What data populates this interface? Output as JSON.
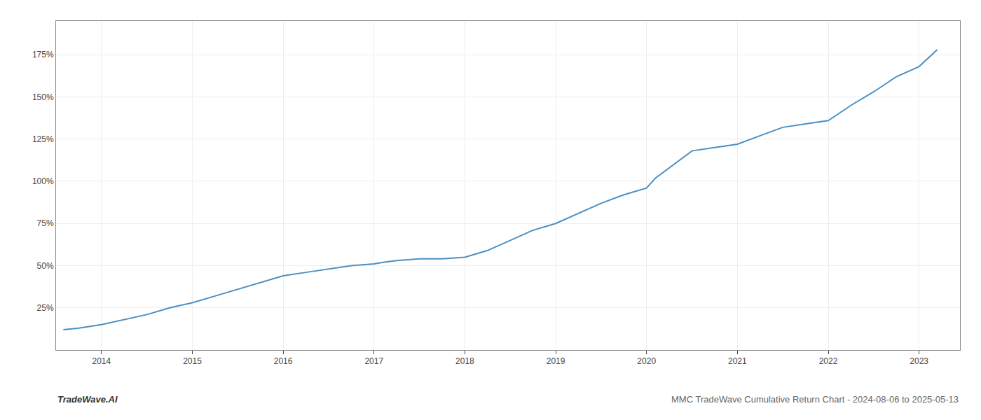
{
  "chart_data": {
    "type": "line",
    "x": [
      2013.58,
      2013.75,
      2014.0,
      2014.25,
      2014.5,
      2014.75,
      2015.0,
      2015.25,
      2015.5,
      2015.75,
      2016.0,
      2016.25,
      2016.5,
      2016.75,
      2017.0,
      2017.1,
      2017.25,
      2017.5,
      2017.75,
      2018.0,
      2018.25,
      2018.5,
      2018.75,
      2019.0,
      2019.25,
      2019.5,
      2019.75,
      2020.0,
      2020.1,
      2020.25,
      2020.5,
      2020.75,
      2021.0,
      2021.25,
      2021.5,
      2021.75,
      2022.0,
      2022.25,
      2022.5,
      2022.75,
      2023.0,
      2023.2
    ],
    "values": [
      12,
      13,
      15,
      18,
      21,
      25,
      28,
      32,
      36,
      40,
      44,
      46,
      48,
      50,
      51,
      52,
      53,
      54,
      54,
      55,
      59,
      65,
      71,
      75,
      81,
      87,
      92,
      96,
      102,
      108,
      118,
      120,
      122,
      127,
      132,
      134,
      136,
      145,
      153,
      162,
      168,
      178
    ],
    "color": "#4a90c4",
    "xlim": [
      2013.5,
      2023.45
    ],
    "ylim": [
      0,
      195
    ],
    "xticks": [
      2014,
      2015,
      2016,
      2017,
      2018,
      2019,
      2020,
      2021,
      2022,
      2023
    ],
    "yticks": [
      {
        "value": 25,
        "label": "25%"
      },
      {
        "value": 50,
        "label": "50%"
      },
      {
        "value": 75,
        "label": "75%"
      },
      {
        "value": 100,
        "label": "100%"
      },
      {
        "value": 125,
        "label": "125%"
      },
      {
        "value": 150,
        "label": "150%"
      },
      {
        "value": 175,
        "label": "175%"
      }
    ],
    "grid": true,
    "annotations": [
      "TradeWave.AI",
      "MMC TradeWave Cumulative Return Chart - 2024-08-06 to 2025-05-13"
    ]
  }
}
